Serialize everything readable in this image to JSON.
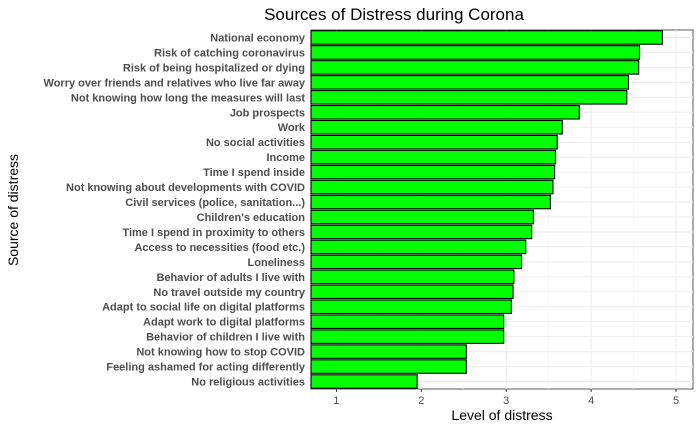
{
  "chart_data": {
    "type": "bar",
    "orientation": "horizontal",
    "title": "Sources of Distress during Corona",
    "xlabel": "Level of distress",
    "ylabel": "Source of distress",
    "xlim": [
      0.7,
      5.2
    ],
    "xticks": [
      1,
      2,
      3,
      4,
      5
    ],
    "grid": true,
    "bar_color": "#00ff00",
    "categories": [
      "National economy",
      "Risk of catching coronavirus",
      "Risk of being hospitalized or dying",
      "Worry over friends and relatives who live far away",
      "Not knowing how long the measures will last",
      "Job prospects",
      "Work",
      "No social activities",
      "Income",
      "Time I spend inside",
      "Not knowing about developments with COVID",
      "Civil services (police, sanitation...)",
      "Children's education",
      "Time I spend in proximity to others",
      "Access to necessities (food etc.)",
      "Loneliness",
      "Behavior of adults I live with",
      "No travel outside my country",
      "Adapt to social life on digital platforms",
      "Adapt work to digital platforms",
      "Behavior of children I live with",
      "Not knowing how to stop COVID",
      "Feeling ashamed for acting differently",
      "No religious activities"
    ],
    "values": [
      4.84,
      4.57,
      4.56,
      4.44,
      4.42,
      3.86,
      3.66,
      3.6,
      3.58,
      3.57,
      3.55,
      3.52,
      3.32,
      3.3,
      3.23,
      3.18,
      3.09,
      3.08,
      3.06,
      2.97,
      2.97,
      2.53,
      2.53,
      1.95
    ]
  }
}
